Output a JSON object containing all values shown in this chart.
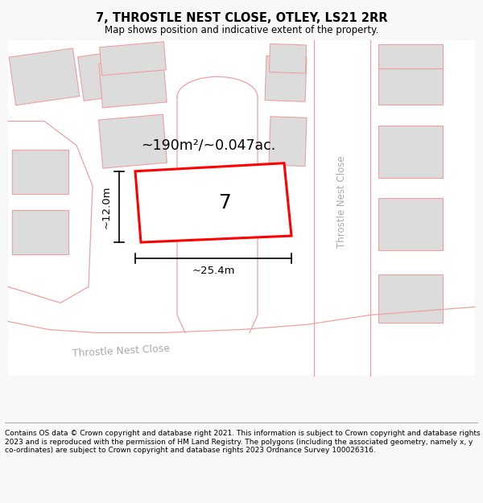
{
  "title_line1": "7, THROSTLE NEST CLOSE, OTLEY, LS21 2RR",
  "title_line2": "Map shows position and indicative extent of the property.",
  "area_text": "~190m²/~0.047ac.",
  "width_label": "~25.4m",
  "height_label": "~12.0m",
  "number_label": "7",
  "road_label_right": "Throstle Nest Close",
  "road_label_bottom": "Throstle Nest Close",
  "copyright_text": "Contains OS data © Crown copyright and database right 2021. This information is subject to Crown copyright and database rights 2023 and is reproduced with the permission of HM Land Registry. The polygons (including the associated geometry, namely x, y co-ordinates) are subject to Crown copyright and database rights 2023 Ordnance Survey 100026316.",
  "bg_color": "#f8f8f8",
  "map_bg": "#ffffff",
  "plot_outline_color": "#ff0000",
  "building_color": "#dcdcdc",
  "road_outline_color": "#f0a0a0",
  "text_color": "#000000",
  "road_label_color": "#aaaaaa",
  "footer_line_color": "#888888"
}
